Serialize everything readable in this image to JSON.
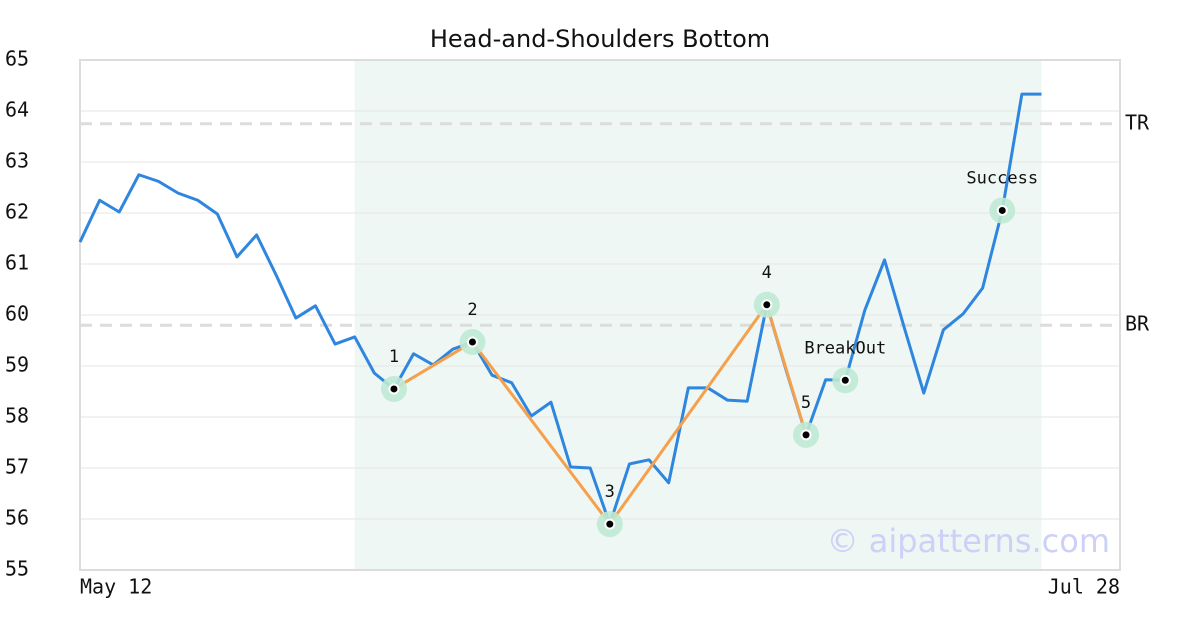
{
  "chart_data": {
    "type": "line",
    "title": "Head-and-Shoulders Bottom",
    "categories": [
      "May 12",
      null,
      null,
      null,
      null,
      null,
      null,
      null,
      null,
      null,
      null,
      null,
      null,
      null,
      null,
      null,
      null,
      null,
      null,
      null,
      null,
      null,
      null,
      null,
      null,
      null,
      null,
      null,
      null,
      null,
      null,
      null,
      null,
      null,
      null,
      null,
      null,
      null,
      null,
      null,
      null,
      null,
      null,
      null,
      null,
      null,
      null,
      null,
      null,
      null,
      null,
      null,
      null,
      "Jul 28"
    ],
    "series": [
      {
        "color": "#2f86de",
        "values": [
          61.43,
          62.25,
          62.02,
          62.75,
          62.62,
          62.39,
          62.25,
          61.98,
          61.14,
          61.57,
          60.78,
          59.94,
          60.18,
          59.43,
          59.57,
          58.86,
          58.55,
          59.24,
          59.02,
          59.33,
          59.47,
          58.82,
          58.67,
          58.02,
          58.29,
          57.02,
          57.0,
          55.9,
          57.08,
          57.16,
          56.71,
          58.57,
          58.57,
          58.33,
          58.31,
          60.2,
          58.9,
          57.65,
          58.73,
          58.72,
          60.1,
          61.08,
          59.76,
          58.47,
          59.71,
          60.02,
          60.53,
          62.05,
          64.33,
          64.33,
          null,
          null,
          null,
          null
        ]
      }
    ],
    "pattern": {
      "color": "#f5a04c",
      "points": [
        {
          "label": "1",
          "at": 16,
          "value": 58.55
        },
        {
          "label": "2",
          "at": 20,
          "value": 59.47
        },
        {
          "label": "3",
          "at": 27,
          "value": 55.9
        },
        {
          "label": "4",
          "at": 35,
          "value": 60.2
        },
        {
          "label": "5",
          "at": 37,
          "value": 57.65
        }
      ]
    },
    "signals": [
      {
        "label": "BreakOut",
        "at": 39,
        "value": 58.72
      },
      {
        "label": "Success",
        "at": 47,
        "value": 62.05
      }
    ],
    "levels": [
      {
        "label": "TR",
        "value": 63.75
      },
      {
        "label": "BR",
        "value": 59.8
      }
    ],
    "highlight": [
      14,
      49
    ],
    "ylim": [
      55,
      65
    ],
    "yticks": [
      55,
      56,
      57,
      58,
      59,
      60,
      61,
      62,
      63,
      64,
      65
    ],
    "grid": true,
    "watermark": "© aipatterns.com"
  }
}
